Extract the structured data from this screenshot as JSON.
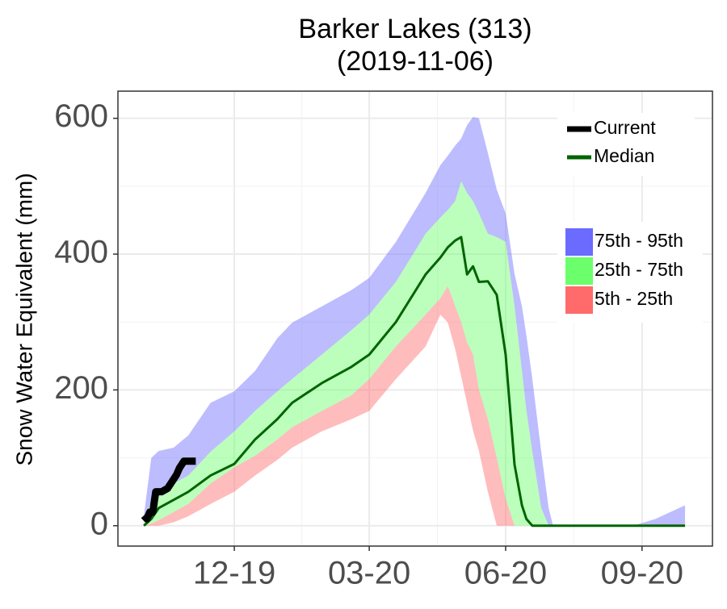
{
  "chart_data": {
    "type": "band-line",
    "title": "Barker Lakes (313)",
    "subtitle": "(2019-11-06)",
    "y_label": "Snow Water Equivalent (mm)",
    "x": [
      0,
      5,
      10,
      20,
      30,
      45,
      61,
      75,
      90,
      100,
      120,
      140,
      152,
      170,
      190,
      200,
      205,
      210,
      214,
      218,
      222,
      226,
      232,
      238,
      244,
      250,
      255,
      258,
      262,
      268,
      273,
      276,
      290,
      330,
      345,
      365
    ],
    "bands": [
      {
        "name": "75th - 95th",
        "color": "#6b6bff",
        "upper": [
          15,
          100,
          110,
          115,
          133,
          181,
          198,
          228,
          276,
          299,
          323,
          347,
          365,
          418,
          490,
          531,
          545,
          560,
          570,
          590,
          602,
          600,
          549,
          495,
          460,
          371,
          323,
          280,
          216,
          109,
          26,
          0,
          0,
          0,
          10,
          30
        ],
        "lower": [
          10,
          35,
          50,
          62,
          74,
          109,
          139,
          169,
          198,
          216,
          252,
          288,
          311,
          359,
          430,
          454,
          465,
          478,
          507,
          490,
          478,
          460,
          430,
          425,
          418,
          323,
          228,
          170,
          109,
          26,
          0,
          0,
          0,
          0,
          0,
          0
        ]
      },
      {
        "name": "25th - 75th",
        "color": "#6bff6b",
        "upper": [
          10,
          35,
          50,
          62,
          74,
          109,
          139,
          169,
          198,
          216,
          252,
          288,
          311,
          359,
          430,
          454,
          465,
          478,
          507,
          490,
          478,
          460,
          430,
          425,
          418,
          323,
          228,
          170,
          109,
          26,
          0,
          0,
          0,
          0,
          0,
          0
        ],
        "lower": [
          0,
          3,
          8,
          20,
          32,
          62,
          86,
          103,
          127,
          145,
          169,
          192,
          216,
          264,
          311,
          335,
          353,
          323,
          300,
          270,
          252,
          200,
          157,
          100,
          40,
          0,
          0,
          0,
          0,
          0,
          0,
          0,
          0,
          0,
          0,
          0
        ]
      },
      {
        "name": "5th - 25th",
        "color": "#ff6b6b",
        "upper": [
          0,
          3,
          8,
          20,
          32,
          62,
          86,
          103,
          127,
          145,
          169,
          192,
          216,
          264,
          311,
          335,
          353,
          323,
          300,
          270,
          252,
          200,
          157,
          100,
          40,
          0,
          0,
          0,
          0,
          0,
          0,
          0,
          0,
          0,
          0,
          0
        ],
        "lower": [
          0,
          0,
          0,
          5,
          14,
          32,
          50,
          74,
          97,
          115,
          139,
          157,
          169,
          216,
          264,
          311,
          299,
          260,
          220,
          180,
          140,
          110,
          50,
          0,
          0,
          0,
          0,
          0,
          0,
          0,
          0,
          0,
          0,
          0,
          0,
          0
        ]
      }
    ],
    "series": [
      {
        "name": "Current",
        "color": "#000000",
        "width": 9,
        "x": [
          0,
          2,
          4,
          6,
          8,
          12,
          16,
          19,
          22,
          24,
          27,
          35
        ],
        "values": [
          15,
          10,
          20,
          20,
          50,
          50,
          55,
          65,
          75,
          85,
          95,
          95
        ]
      },
      {
        "name": "Median",
        "color": "#006400",
        "width": 3,
        "values": [
          0,
          10,
          26,
          38,
          50,
          74,
          91,
          127,
          157,
          181,
          210,
          234,
          252,
          300,
          370,
          395,
          410,
          420,
          425,
          370,
          382,
          359,
          360,
          340,
          252,
          90,
          30,
          10,
          0,
          0,
          0,
          0,
          0,
          0,
          0,
          0
        ]
      }
    ],
    "xlim": [
      -17.5,
      383.5
    ],
    "xticks": [
      {
        "value": 61,
        "label": "12-19"
      },
      {
        "value": 152,
        "label": "03-20"
      },
      {
        "value": 244,
        "label": "06-20"
      },
      {
        "value": 336,
        "label": "09-20"
      }
    ],
    "ylim": [
      -30,
      640
    ],
    "yticks": [
      0,
      200,
      400,
      600
    ],
    "grid": true
  }
}
